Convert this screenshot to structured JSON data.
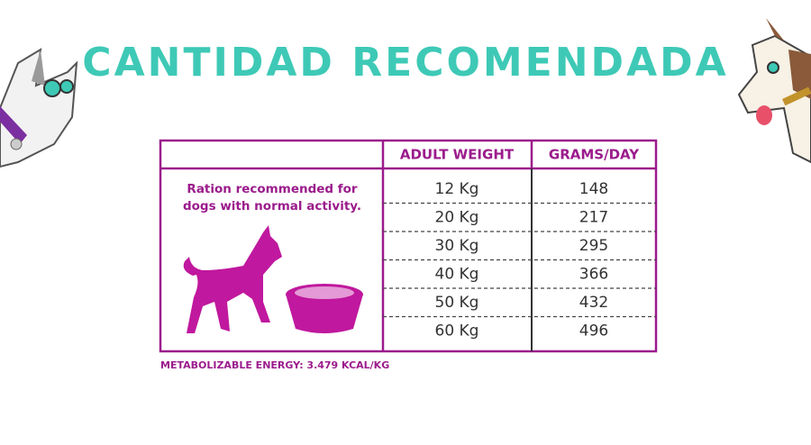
{
  "header": {
    "title": "CANTIDAD RECOMENDADA"
  },
  "table": {
    "columns": [
      "ADULT WEIGHT",
      "GRAMS/DAY"
    ],
    "description": [
      "Ration recommended for",
      "dogs with normal activity."
    ],
    "rows": [
      [
        "12 Kg",
        "148"
      ],
      [
        "20 Kg",
        "217"
      ],
      [
        "30 Kg",
        "295"
      ],
      [
        "40 Kg",
        "366"
      ],
      [
        "50 Kg",
        "432"
      ],
      [
        "60 Kg",
        "496"
      ]
    ]
  },
  "footer": {
    "note": "METABOLIZABLE ENERGY: 3.479 KCAL/KG"
  }
}
